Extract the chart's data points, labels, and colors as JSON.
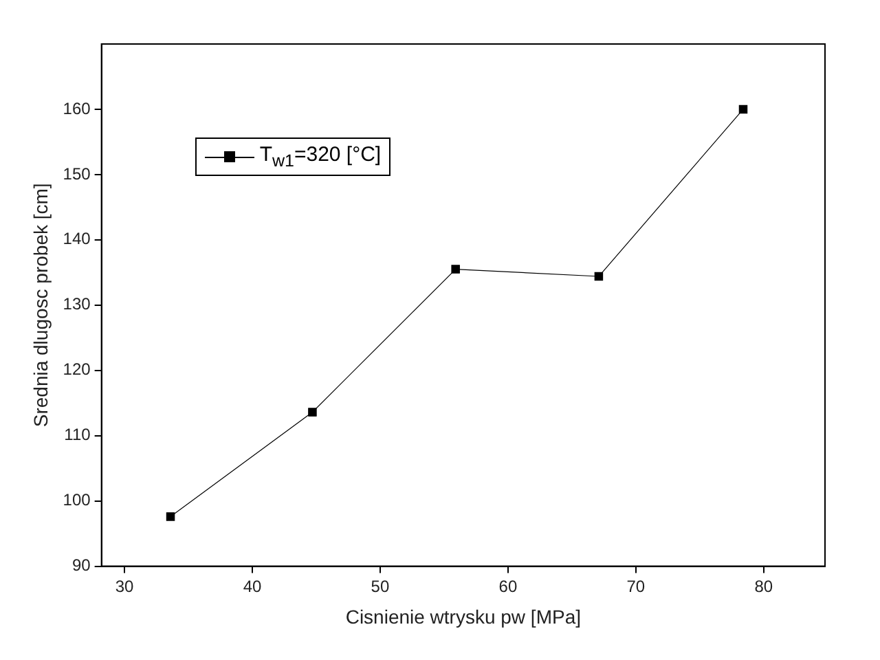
{
  "chart_data": {
    "type": "line",
    "xlabel": "Cisnienie wtrysku pw [MPa]",
    "ylabel": "Srednia dlugosc probek [cm]",
    "x": [
      33.6,
      44.7,
      55.9,
      67.1,
      78.4
    ],
    "series": [
      {
        "name": "T$_{w1}$=320 [°C]",
        "color": "#000000",
        "values": [
          97.6,
          113.6,
          135.5,
          134.4,
          160.0
        ]
      }
    ],
    "xlim": [
      28.2,
      84.8
    ],
    "xticks": [
      30,
      40,
      50,
      60,
      70,
      80
    ],
    "ylim": [
      90,
      170
    ],
    "yticks": [
      90,
      100,
      110,
      120,
      130,
      140,
      150,
      160
    ],
    "grid": false,
    "legend": "top left",
    "marker": "square",
    "line_style": "solid"
  }
}
